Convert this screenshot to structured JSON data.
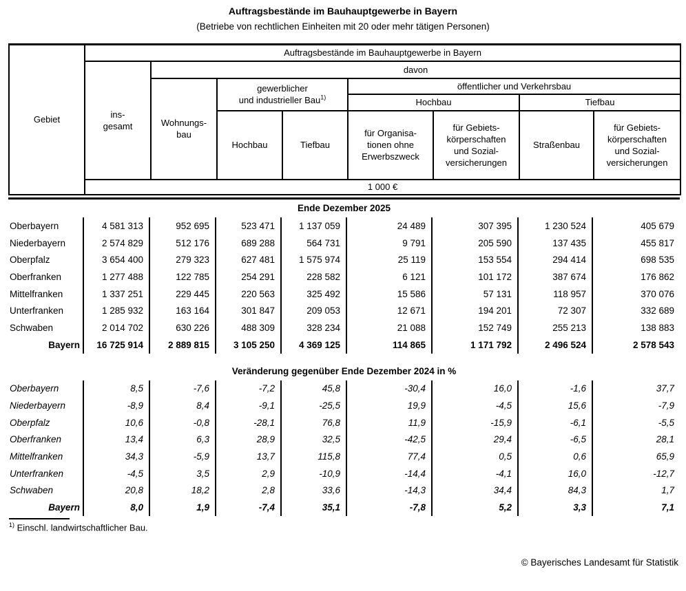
{
  "title": "Auftragsbestände im Bauhauptgewerbe in Bayern",
  "subtitle": "(Betriebe von rechtlichen Einheiten mit 20 oder mehr tätigen Personen)",
  "table": {
    "header": {
      "gebiet": "Gebiet",
      "group_title": "Auftragsbestände im Bauhauptgewerbe in Bayern",
      "davon": "davon",
      "insgesamt": "ins-\ngesamt",
      "wohnungsbau": "Wohnungs-\nbau",
      "gewerblich_industriell": "gewerblicher\nund industrieller Bau",
      "footnote_marker": "1)",
      "oeffentlich_verkehr": "öffentlicher und Verkehrsbau",
      "hochbau_oeffentlich": "Hochbau",
      "tiefbau_oeffentlich": "Tiefbau",
      "hochbau_gewerblich": "Hochbau",
      "tiefbau_gewerblich": "Tiefbau",
      "org_ohne_erwerbszweck": "für Organisa-\ntionen ohne\nErwerbszweck",
      "gebietskoerperschaften_hochbau": "für Gebiets-\nkörperschaften\nund Sozial-\nversicherungen",
      "strassenbau": "Straßenbau",
      "gebietskoerperschaften_tiefbau": "für Gebiets-\nkörperschaften\nund Sozial-\nversicherungen",
      "unit": "1 000 €"
    },
    "sections": [
      {
        "heading": "Ende Dezember 2025",
        "italic": false,
        "rows": [
          {
            "label": "Oberbayern",
            "bold": false,
            "values": [
              "4 581 313",
              "952 695",
              "523 471",
              "1 137 059",
              "24 489",
              "307 395",
              "1 230 524",
              "405 679"
            ]
          },
          {
            "label": "Niederbayern",
            "bold": false,
            "values": [
              "2 574 829",
              "512 176",
              "689 288",
              "564 731",
              "9 791",
              "205 590",
              "137 435",
              "455 817"
            ]
          },
          {
            "label": "Oberpfalz",
            "bold": false,
            "values": [
              "3 654 400",
              "279 323",
              "627 481",
              "1 575 974",
              "25 119",
              "153 554",
              "294 414",
              "698 535"
            ]
          },
          {
            "label": "Oberfranken",
            "bold": false,
            "values": [
              "1 277 488",
              "122 785",
              "254 291",
              "228 582",
              "6 121",
              "101 172",
              "387 674",
              "176 862"
            ]
          },
          {
            "label": "Mittelfranken",
            "bold": false,
            "values": [
              "1 337 251",
              "229 445",
              "220 563",
              "325 492",
              "15 586",
              "57 131",
              "118 957",
              "370 076"
            ]
          },
          {
            "label": "Unterfranken",
            "bold": false,
            "values": [
              "1 285 932",
              "163 164",
              "301 847",
              "209 053",
              "12 671",
              "194 201",
              "72 307",
              "332 689"
            ]
          },
          {
            "label": "Schwaben",
            "bold": false,
            "values": [
              "2 014 702",
              "630 226",
              "488 309",
              "328 234",
              "21 088",
              "152 749",
              "255 213",
              "138 883"
            ]
          },
          {
            "label": "Bayern",
            "bold": true,
            "values": [
              "16 725 914",
              "2 889 815",
              "3 105 250",
              "4 369 125",
              "114 865",
              "1 171 792",
              "2 496 524",
              "2 578 543"
            ]
          }
        ]
      },
      {
        "heading": "Veränderung gegenüber Ende Dezember 2024 in %",
        "italic": true,
        "rows": [
          {
            "label": "Oberbayern",
            "bold": false,
            "values": [
              "8,5",
              "-7,6",
              "-7,2",
              "45,8",
              "-30,4",
              "16,0",
              "-1,6",
              "37,7"
            ]
          },
          {
            "label": "Niederbayern",
            "bold": false,
            "values": [
              "-8,9",
              "8,4",
              "-9,1",
              "-25,5",
              "19,9",
              "-4,5",
              "15,6",
              "-7,9"
            ]
          },
          {
            "label": "Oberpfalz",
            "bold": false,
            "values": [
              "10,6",
              "-0,8",
              "-28,1",
              "76,8",
              "11,9",
              "-15,9",
              "-6,1",
              "-5,5"
            ]
          },
          {
            "label": "Oberfranken",
            "bold": false,
            "values": [
              "13,4",
              "6,3",
              "28,9",
              "32,5",
              "-42,5",
              "29,4",
              "-6,5",
              "28,1"
            ]
          },
          {
            "label": "Mittelfranken",
            "bold": false,
            "values": [
              "34,3",
              "-5,9",
              "13,7",
              "115,8",
              "77,4",
              "0,5",
              "0,6",
              "65,9"
            ]
          },
          {
            "label": "Unterfranken",
            "bold": false,
            "values": [
              "-4,5",
              "3,5",
              "2,9",
              "-10,9",
              "-14,4",
              "-4,1",
              "16,0",
              "-12,7"
            ]
          },
          {
            "label": "Schwaben",
            "bold": false,
            "values": [
              "20,8",
              "18,2",
              "2,8",
              "33,6",
              "-14,3",
              "34,4",
              "84,3",
              "1,7"
            ]
          },
          {
            "label": "Bayern",
            "bold": true,
            "values": [
              "8,0",
              "1,9",
              "-7,4",
              "35,1",
              "-7,8",
              "5,2",
              "3,3",
              "7,1"
            ]
          }
        ]
      }
    ]
  },
  "footnote": {
    "marker": "1)",
    "text": "Einschl. landwirtschaftlicher Bau."
  },
  "footer": {
    "copyright": "© Bayerisches Landesamt für Statistik"
  }
}
